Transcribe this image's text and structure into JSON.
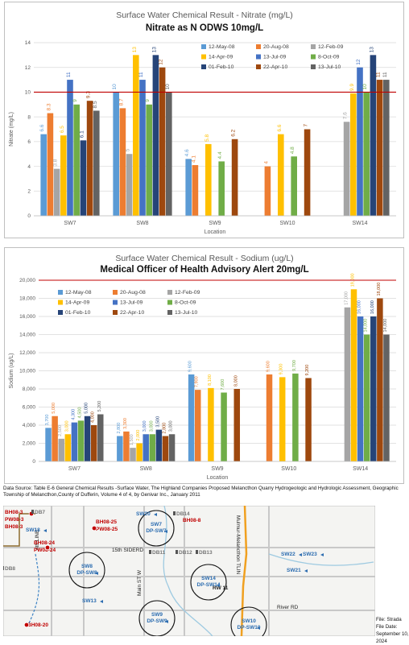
{
  "charts": [
    {
      "type": "bar",
      "title": "Surface Water Chemical Result - Nitrate (mg/L)",
      "subtitle": "Nitrate as N ODWS 10mg/L",
      "xlabel": "Location",
      "ylabel": "Nitrate (mg/L)",
      "ylim": [
        0,
        14
      ],
      "yticks": [
        "0",
        "2",
        "4",
        "6",
        "8",
        "10",
        "12",
        "14"
      ],
      "reference_line": 10,
      "categories": [
        "SW7",
        "SW8",
        "SW9",
        "SW10",
        "SW14"
      ],
      "series": [
        {
          "name": "12-May-08",
          "color": "#5b9bd5",
          "values": [
            6.6,
            10,
            4.6,
            null,
            null
          ],
          "labels": [
            "6.6",
            "10",
            "4.6",
            "",
            ""
          ]
        },
        {
          "name": "20-Aug-08",
          "color": "#ed7d31",
          "values": [
            8.3,
            8.7,
            4.1,
            4,
            null
          ],
          "labels": [
            "8.3",
            "8.7",
            "4.1",
            "4",
            ""
          ]
        },
        {
          "name": "12-Feb-09",
          "color": "#a5a5a5",
          "values": [
            3.8,
            5,
            null,
            null,
            7.6
          ],
          "labels": [
            "3.8",
            "5",
            "",
            "",
            "7.6"
          ]
        },
        {
          "name": "14-Apr-09",
          "color": "#ffc000",
          "values": [
            6.5,
            13,
            5.8,
            6.6,
            9.9
          ],
          "labels": [
            "6.5",
            "13",
            "5.8",
            "6.6",
            "9.9"
          ]
        },
        {
          "name": "13-Jul-09",
          "color": "#4472c4",
          "values": [
            11,
            11,
            null,
            null,
            12
          ],
          "labels": [
            "11",
            "11",
            "",
            "",
            "12"
          ]
        },
        {
          "name": "8-Oct-09",
          "color": "#70ad47",
          "values": [
            9,
            9,
            4.4,
            4.8,
            10
          ],
          "labels": [
            "9",
            "9",
            "4.4",
            "4.8",
            "10"
          ]
        },
        {
          "name": "01-Feb-10",
          "color": "#264478",
          "values": [
            6.1,
            13,
            null,
            null,
            13
          ],
          "labels": [
            "6.1",
            "13",
            "",
            "",
            "13"
          ]
        },
        {
          "name": "22-Apr-10",
          "color": "#9e480e",
          "values": [
            9.3,
            12,
            6.2,
            7,
            11
          ],
          "labels": [
            "9.3",
            "12",
            "6.2",
            "7",
            "11"
          ]
        },
        {
          "name": "13-Jul-10",
          "color": "#636363",
          "values": [
            8.5,
            10,
            null,
            null,
            11
          ],
          "labels": [
            "8.5",
            "10",
            "",
            "",
            "11"
          ]
        }
      ]
    },
    {
      "type": "bar",
      "title": "Surface Water Chemical Result - Sodium (ug/L)",
      "subtitle": "Medical Officer of Health Advisory Alert 20mg/L",
      "xlabel": "Location",
      "ylabel": "Sodium (ug/L)",
      "ylim": [
        0,
        20000
      ],
      "yticks": [
        "0",
        "2,000",
        "4,000",
        "6,000",
        "8,000",
        "10,000",
        "12,000",
        "14,000",
        "16,000",
        "18,000",
        "20,000"
      ],
      "reference_line": 20000,
      "categories": [
        "SW7",
        "SW8",
        "SW9",
        "SW10",
        "SW14"
      ],
      "series": [
        {
          "name": "12-May-08",
          "color": "#5b9bd5",
          "values": [
            3700,
            2800,
            9600,
            null,
            null
          ],
          "labels": [
            "3,700",
            "2,800",
            "9,600",
            "",
            ""
          ]
        },
        {
          "name": "20-Aug-08",
          "color": "#ed7d31",
          "values": [
            5000,
            3300,
            7900,
            9600,
            null
          ],
          "labels": [
            "5,000",
            "3,300",
            "7,900",
            "9,600",
            ""
          ]
        },
        {
          "name": "12-Feb-09",
          "color": "#a5a5a5",
          "values": [
            2500,
            1500,
            null,
            null,
            17000
          ],
          "labels": [
            "2,500",
            "1,500",
            "",
            "",
            "17,000"
          ]
        },
        {
          "name": "14-Apr-09",
          "color": "#ffc000",
          "values": [
            3000,
            2000,
            8100,
            9300,
            19000
          ],
          "labels": [
            "3,000",
            "2,000",
            "8,100",
            "9,300",
            "19,000"
          ]
        },
        {
          "name": "13-Jul-09",
          "color": "#4472c4",
          "values": [
            4300,
            3000,
            null,
            null,
            16000
          ],
          "labels": [
            "4,300",
            "3,000",
            "",
            "",
            "16,000"
          ]
        },
        {
          "name": "8-Oct-09",
          "color": "#70ad47",
          "values": [
            4500,
            3000,
            7600,
            9700,
            14000
          ],
          "labels": [
            "4,500",
            "3,000",
            "7,600",
            "9,700",
            "14,000"
          ]
        },
        {
          "name": "01-Feb-10",
          "color": "#264478",
          "values": [
            5000,
            3500,
            null,
            null,
            16000
          ],
          "labels": [
            "5,000",
            "3,500",
            "",
            "",
            "16,000"
          ]
        },
        {
          "name": "22-Apr-10",
          "color": "#9e480e",
          "values": [
            4000,
            2800,
            8000,
            9200,
            18000
          ],
          "labels": [
            "4,000",
            "2,800",
            "8,000",
            "9,200",
            "18,000"
          ]
        },
        {
          "name": "13-Jul-10",
          "color": "#636363",
          "values": [
            5200,
            3000,
            null,
            null,
            14000
          ],
          "labels": [
            "5,200",
            "3,000",
            "",
            "",
            "14,000"
          ]
        }
      ]
    }
  ],
  "source_note": "Data Source: Table E-6 General Chemical Results -Surface Water, The Highland Companies Proposed Melancthon Quarry Hydrogeologic and Hydrologic Assessment, Geographic Township of Melancthon,County of Dufferin, Volume 4 of 4, by Genivar Inc., January 2011",
  "map": {
    "stations": [
      {
        "id": "SW7",
        "label1": "SW7",
        "label2": "DP-SW7"
      },
      {
        "id": "SW8",
        "label1": "SW8",
        "label2": "DP-SW8"
      },
      {
        "id": "SW9",
        "label1": "SW9",
        "label2": "DP-SW9"
      },
      {
        "id": "SW10",
        "label1": "SW10",
        "label2": "DP-SW10"
      },
      {
        "id": "SW14",
        "label1": "SW14",
        "label2": "DP-SW14"
      }
    ],
    "blue_labels": [
      "SW18",
      "SW20",
      "SW22",
      "SW23",
      "SW21",
      "SW13"
    ],
    "red_labels": [
      "BH08-3",
      "PW08-3",
      "BH08-3",
      "BH08-25",
      "PW08-25",
      "BH08-24",
      "PW08-24",
      "BH08-8",
      "BH08-20"
    ],
    "grey_labels": [
      "DB7",
      "DB14",
      "DB11",
      "DB12",
      "DB13",
      "DB8"
    ],
    "road_labels": [
      "15th SIDERD",
      "4th LINE",
      "Main ST W",
      "Mulmur-Melancthon TLIN",
      "RW 11",
      "River RD"
    ]
  },
  "file": {
    "name": "File: Strada",
    "date": "File Date: September 10, 2024"
  }
}
